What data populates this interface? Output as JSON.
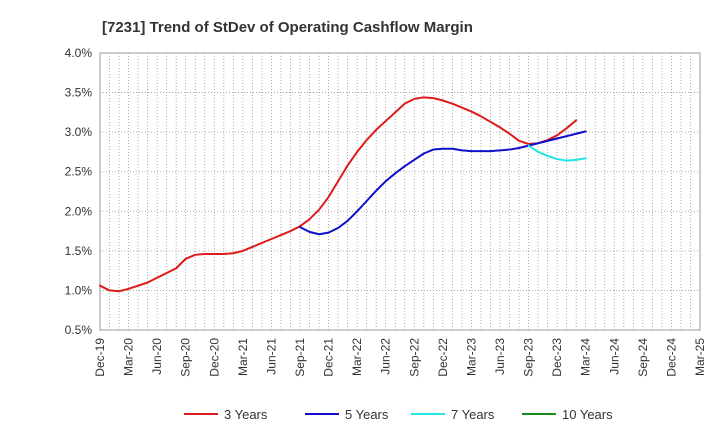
{
  "chart_data": {
    "type": "line",
    "title": "[7231]  Trend of StDev of Operating Cashflow Margin",
    "xlabel": "",
    "ylabel": "",
    "x_ticks": [
      "Dec-19",
      "Mar-20",
      "Jun-20",
      "Sep-20",
      "Dec-20",
      "Mar-21",
      "Jun-21",
      "Sep-21",
      "Dec-21",
      "Mar-22",
      "Jun-22",
      "Sep-22",
      "Dec-22",
      "Mar-23",
      "Jun-23",
      "Sep-23",
      "Dec-23",
      "Mar-24",
      "Jun-24",
      "Sep-24",
      "Dec-24",
      "Mar-25"
    ],
    "y_ticks": [
      "0.5%",
      "1.0%",
      "1.5%",
      "2.0%",
      "2.5%",
      "3.0%",
      "3.5%",
      "4.0%"
    ],
    "ylim": [
      0.5,
      4.0
    ],
    "y_unit": "%",
    "grid": true,
    "legend_position": "bottom",
    "series": [
      {
        "name": "3 Years",
        "color": "#dd1c1c",
        "points": [
          [
            "Dec-19",
            1.06
          ],
          [
            "Jan-20",
            1.0
          ],
          [
            "Feb-20",
            0.99
          ],
          [
            "Mar-20",
            1.02
          ],
          [
            "Apr-20",
            1.06
          ],
          [
            "May-20",
            1.1
          ],
          [
            "Jun-20",
            1.16
          ],
          [
            "Jul-20",
            1.22
          ],
          [
            "Aug-20",
            1.28
          ],
          [
            "Sep-20",
            1.4
          ],
          [
            "Oct-20",
            1.45
          ],
          [
            "Nov-20",
            1.46
          ],
          [
            "Dec-20",
            1.46
          ],
          [
            "Jan-21",
            1.46
          ],
          [
            "Feb-21",
            1.47
          ],
          [
            "Mar-21",
            1.5
          ],
          [
            "Apr-21",
            1.55
          ],
          [
            "May-21",
            1.6
          ],
          [
            "Jun-21",
            1.65
          ],
          [
            "Jul-21",
            1.7
          ],
          [
            "Aug-21",
            1.75
          ],
          [
            "Sep-21",
            1.81
          ],
          [
            "Oct-21",
            1.9
          ],
          [
            "Nov-21",
            2.02
          ],
          [
            "Dec-21",
            2.18
          ],
          [
            "Jan-22",
            2.38
          ],
          [
            "Feb-22",
            2.58
          ],
          [
            "Mar-22",
            2.75
          ],
          [
            "Apr-22",
            2.9
          ],
          [
            "May-22",
            3.03
          ],
          [
            "Jun-22",
            3.14
          ],
          [
            "Jul-22",
            3.25
          ],
          [
            "Aug-22",
            3.36
          ],
          [
            "Sep-22",
            3.42
          ],
          [
            "Oct-22",
            3.44
          ],
          [
            "Nov-22",
            3.43
          ],
          [
            "Dec-22",
            3.4
          ],
          [
            "Jan-23",
            3.36
          ],
          [
            "Feb-23",
            3.31
          ],
          [
            "Mar-23",
            3.26
          ],
          [
            "Apr-23",
            3.2
          ],
          [
            "May-23",
            3.13
          ],
          [
            "Jun-23",
            3.06
          ],
          [
            "Jul-23",
            2.98
          ],
          [
            "Aug-23",
            2.89
          ],
          [
            "Sep-23",
            2.85
          ],
          [
            "Oct-23",
            2.86
          ],
          [
            "Nov-23",
            2.9
          ],
          [
            "Dec-23",
            2.96
          ],
          [
            "Jan-24",
            3.05
          ],
          [
            "Feb-24",
            3.15
          ]
        ]
      },
      {
        "name": "5 Years",
        "color": "#1010cc",
        "points": [
          [
            "Sep-21",
            1.8
          ],
          [
            "Oct-21",
            1.74
          ],
          [
            "Nov-21",
            1.71
          ],
          [
            "Dec-21",
            1.73
          ],
          [
            "Jan-22",
            1.79
          ],
          [
            "Feb-22",
            1.88
          ],
          [
            "Mar-22",
            2.0
          ],
          [
            "Apr-22",
            2.13
          ],
          [
            "May-22",
            2.26
          ],
          [
            "Jun-22",
            2.38
          ],
          [
            "Jul-22",
            2.48
          ],
          [
            "Aug-22",
            2.57
          ],
          [
            "Sep-22",
            2.65
          ],
          [
            "Oct-22",
            2.73
          ],
          [
            "Nov-22",
            2.78
          ],
          [
            "Dec-22",
            2.79
          ],
          [
            "Jan-23",
            2.79
          ],
          [
            "Feb-23",
            2.77
          ],
          [
            "Mar-23",
            2.76
          ],
          [
            "Apr-23",
            2.76
          ],
          [
            "May-23",
            2.76
          ],
          [
            "Jun-23",
            2.77
          ],
          [
            "Jul-23",
            2.78
          ],
          [
            "Aug-23",
            2.8
          ],
          [
            "Sep-23",
            2.83
          ],
          [
            "Oct-23",
            2.86
          ],
          [
            "Nov-23",
            2.89
          ],
          [
            "Dec-23",
            2.92
          ],
          [
            "Jan-24",
            2.95
          ],
          [
            "Feb-24",
            2.98
          ],
          [
            "Mar-24",
            3.01
          ]
        ]
      },
      {
        "name": "7 Years",
        "color": "#22e6e6",
        "points": [
          [
            "Sep-23",
            2.83
          ],
          [
            "Oct-23",
            2.75
          ],
          [
            "Nov-23",
            2.7
          ],
          [
            "Dec-23",
            2.66
          ],
          [
            "Jan-24",
            2.64
          ],
          [
            "Feb-24",
            2.65
          ],
          [
            "Mar-24",
            2.67
          ]
        ]
      },
      {
        "name": "10 Years",
        "color": "#1a8a1a",
        "points": []
      }
    ]
  }
}
